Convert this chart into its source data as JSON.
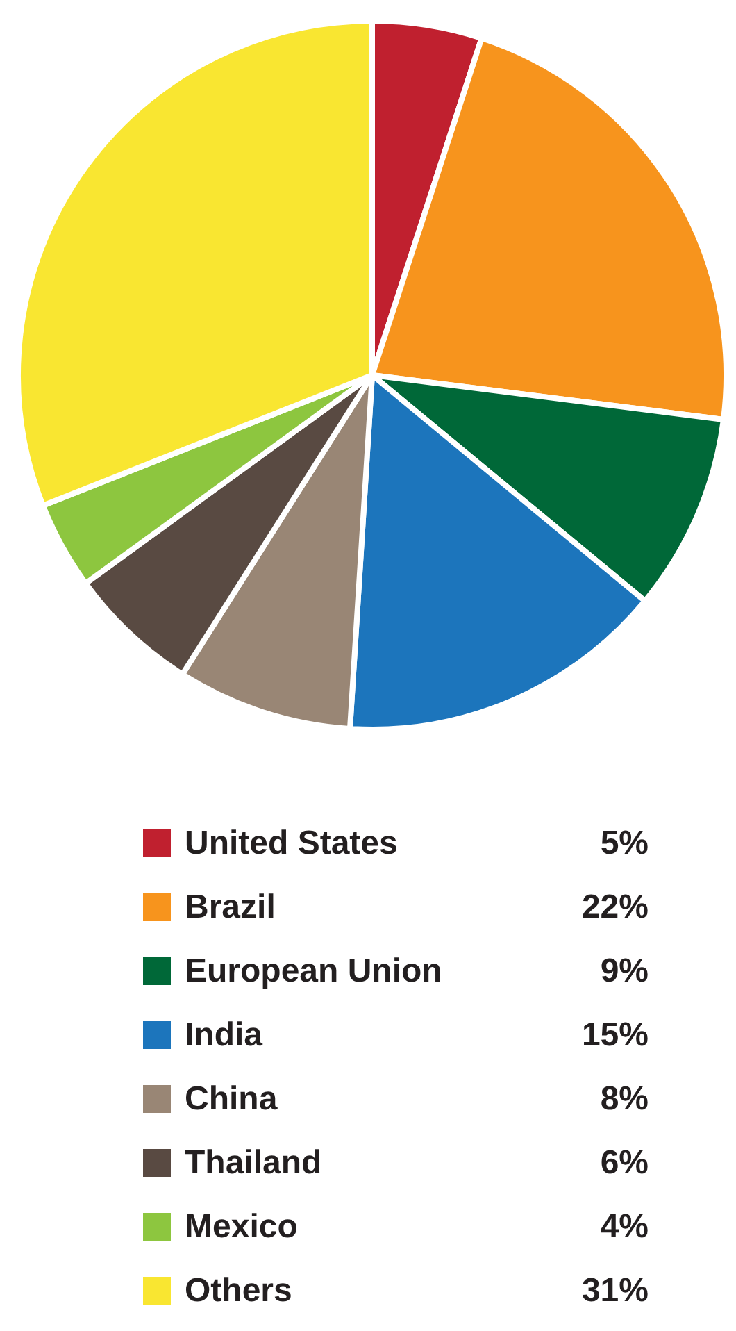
{
  "chart_data": {
    "type": "pie",
    "categories": [
      "United States",
      "Brazil",
      "European Union",
      "India",
      "China",
      "Thailand",
      "Mexico",
      "Others"
    ],
    "values": [
      5,
      22,
      9,
      15,
      8,
      6,
      4,
      31
    ],
    "colors": [
      "#c0202f",
      "#f7941d",
      "#006838",
      "#1c75bc",
      "#998675",
      "#594a42",
      "#8dc63f",
      "#f9e631"
    ],
    "value_labels": [
      "5%",
      "22%",
      "9%",
      "15%",
      "8%",
      "6%",
      "4%",
      "31%"
    ],
    "legend": "bottom"
  }
}
